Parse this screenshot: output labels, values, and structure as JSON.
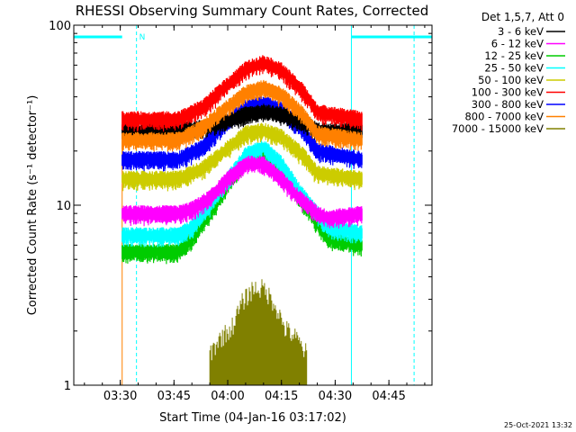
{
  "chart_data": {
    "type": "line",
    "title": "RHESSI Observing Summary Count Rates, Corrected",
    "xlabel": "Start Time (04-Jan-16 03:17:02)",
    "ylabel": "Corrected Count Rate (s⁻¹ detector⁻¹)",
    "yscale": "log",
    "ylim": [
      1,
      100
    ],
    "xlim_minutes_after_start": [
      0,
      100
    ],
    "x_ticks": [
      {
        "label": "03:30",
        "minute": 12.97
      },
      {
        "label": "03:45",
        "minute": 27.97
      },
      {
        "label": "04:00",
        "minute": 42.97
      },
      {
        "label": "04:15",
        "minute": 57.97
      },
      {
        "label": "04:30",
        "minute": 72.97
      },
      {
        "label": "04:45",
        "minute": 87.97
      }
    ],
    "y_ticks": [
      {
        "label": "1",
        "value": 1
      },
      {
        "label": "10",
        "value": 10
      },
      {
        "label": "100",
        "value": 100
      }
    ],
    "legend_title": "Det 1,5,7, Att 0",
    "legend_position": "right",
    "data_start_minute": 13.5,
    "data_end_minute": 80.5,
    "series": [
      {
        "name": "3 - 6 keV",
        "color": "#000000",
        "x": [
          13.5,
          29,
          36,
          42,
          48,
          53,
          58,
          64,
          68,
          80.5
        ],
        "values": [
          26,
          26,
          27,
          29,
          32,
          33,
          32,
          29,
          26,
          26
        ]
      },
      {
        "name": "6 - 12 keV",
        "color": "#ff00ff",
        "x": [
          13.5,
          29,
          33,
          38,
          43,
          48,
          53,
          58,
          63,
          68,
          71,
          80.5
        ],
        "values": [
          9,
          9,
          9.5,
          11,
          14,
          17,
          17,
          14,
          11,
          9,
          8.5,
          9
        ]
      },
      {
        "name": "12 - 25 keV",
        "color": "#00cc00",
        "x": [
          13.5,
          29,
          33,
          38,
          43,
          48,
          53,
          58,
          63,
          68,
          71,
          80.5
        ],
        "values": [
          5.5,
          5.5,
          6.5,
          9,
          13,
          18,
          20,
          16,
          11,
          8,
          6.5,
          6
        ]
      },
      {
        "name": "25 - 50 keV",
        "color": "#00ffff",
        "x": [
          13.5,
          29,
          33,
          38,
          43,
          48,
          53,
          58,
          63,
          68,
          71,
          80.5
        ],
        "values": [
          6.8,
          6.8,
          7.5,
          10,
          14,
          19,
          21,
          17,
          12,
          9,
          7.5,
          7
        ]
      },
      {
        "name": "50 - 100 keV",
        "color": "#cccc00",
        "x": [
          13.5,
          29,
          36,
          42,
          48,
          53,
          58,
          64,
          68,
          80.5
        ],
        "values": [
          14,
          14,
          16,
          20,
          25,
          26,
          24,
          19,
          15,
          14
        ]
      },
      {
        "name": "100 - 300 keV",
        "color": "#ff0000",
        "x": [
          13.5,
          29,
          36,
          42,
          48,
          53,
          58,
          64,
          68,
          80.5
        ],
        "values": [
          30,
          30,
          35,
          45,
          57,
          62,
          56,
          43,
          33,
          30
        ]
      },
      {
        "name": "300 - 800 keV",
        "color": "#0000ff",
        "x": [
          13.5,
          29,
          36,
          42,
          48,
          53,
          58,
          64,
          68,
          80.5
        ],
        "values": [
          18,
          18,
          21,
          28,
          35,
          37,
          34,
          26,
          20,
          18
        ]
      },
      {
        "name": "800 - 7000 keV",
        "color": "#ff8000",
        "x": [
          13.5,
          29,
          36,
          42,
          48,
          53,
          58,
          64,
          68,
          80.5
        ],
        "values": [
          23,
          23,
          27,
          34,
          42,
          45,
          41,
          32,
          25,
          23
        ]
      },
      {
        "name": "7000 - 15000 keV",
        "color": "#808000",
        "x": [
          38,
          41,
          44,
          47,
          50,
          53,
          56,
          59,
          62,
          65
        ],
        "values": [
          1.3,
          1.6,
          1.8,
          2.5,
          3,
          3,
          2.5,
          1.8,
          1.6,
          1.3
        ]
      }
    ],
    "annotations": [
      {
        "label": "N",
        "minute": 17.5
      }
    ]
  },
  "footer": {
    "date": "25-Oct-2021 13:32"
  }
}
